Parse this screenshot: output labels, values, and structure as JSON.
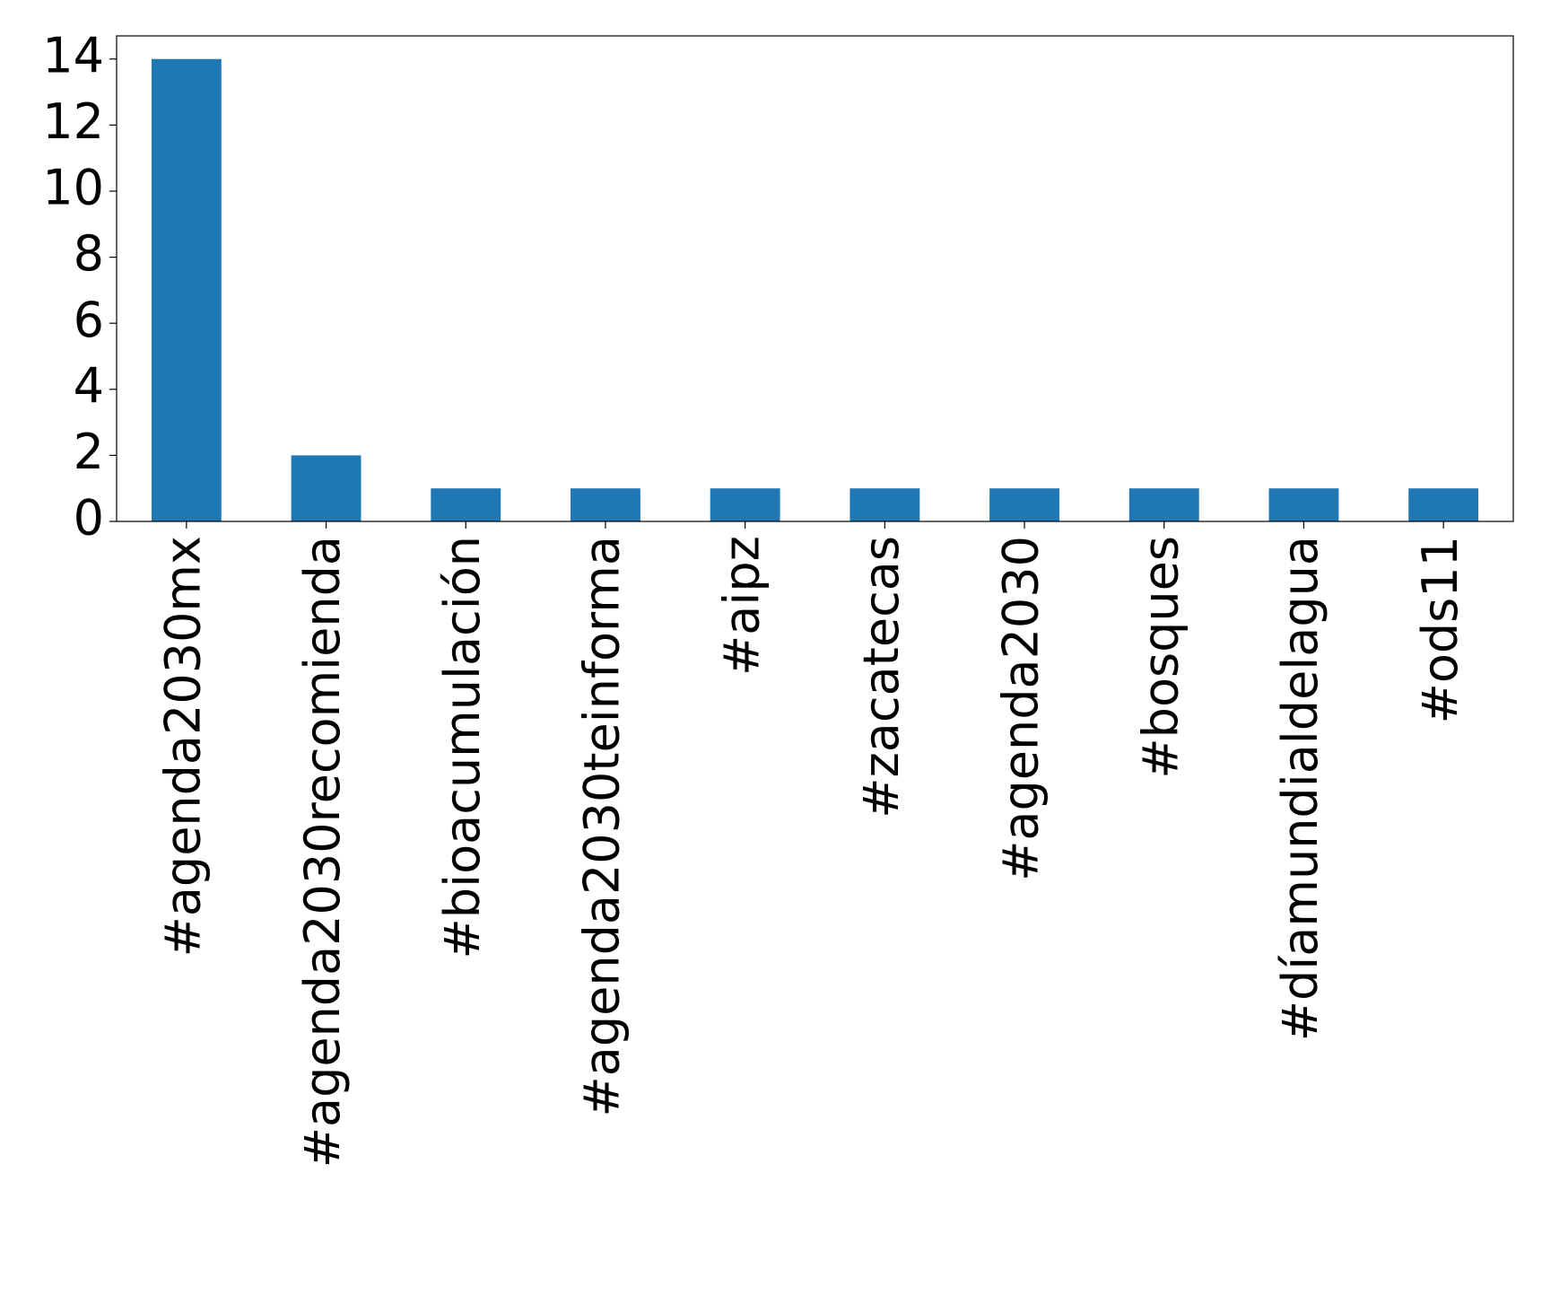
{
  "chart_data": {
    "type": "bar",
    "categories": [
      "#agenda2030mx",
      "#agenda2030recomienda",
      "#bioacumulación",
      "#agenda2030teinforma",
      "#aipz",
      "#zacatecas",
      "#agenda2030",
      "#bosques",
      "#díamundialdelagua",
      "#ods11"
    ],
    "values": [
      14,
      2,
      1,
      1,
      1,
      1,
      1,
      1,
      1,
      1
    ],
    "color": "#1f77b4",
    "ylim": [
      0,
      14.7
    ],
    "yticks": [
      0,
      2,
      4,
      6,
      8,
      10,
      12,
      14
    ],
    "grid": false
  }
}
